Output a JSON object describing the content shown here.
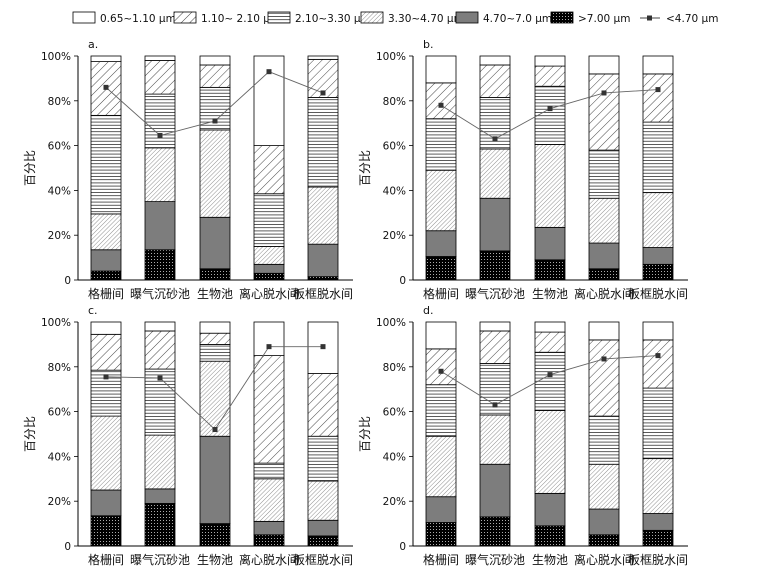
{
  "legend": [
    {
      "key": "s1",
      "label": "0.65~1.10 μm",
      "pattern": "white"
    },
    {
      "key": "s2",
      "label": "1.10~ 2.10 μm",
      "pattern": "diag-wide"
    },
    {
      "key": "s3",
      "label": "2.10~3.30 μm",
      "pattern": "horizontal"
    },
    {
      "key": "s4",
      "label": "3.30~4.70 μm",
      "pattern": "diag-dense"
    },
    {
      "key": "s5",
      "label": "4.70~7.0 μm",
      "pattern": "gray"
    },
    {
      "key": "s6",
      "label": ">7.00 μm",
      "pattern": "black-dots"
    },
    {
      "key": "line",
      "label": "<4.70 μm",
      "pattern": "line-marker"
    }
  ],
  "chart_data": [
    {
      "type": "bar",
      "panel": "a.",
      "ylabel": "百分比",
      "ylim": [
        0,
        100
      ],
      "yticks": [
        "0",
        "20%",
        "40%",
        "60%",
        "80%",
        "100%"
      ],
      "categories": [
        "格栅间",
        "曝气沉砂池",
        "生物池",
        "离心脱水间",
        "板框脱水间"
      ],
      "series": [
        {
          "name": ">7.00 μm",
          "values": [
            4,
            13.5,
            5,
            3,
            1.5
          ]
        },
        {
          "name": "4.70~7.0 μm",
          "values": [
            9.5,
            21.5,
            23,
            4,
            14.5
          ]
        },
        {
          "name": "3.30~4.70 μm",
          "values": [
            16,
            24,
            39,
            8,
            25.5
          ]
        },
        {
          "name": "2.10~3.30 μm",
          "values": [
            44,
            24,
            19,
            23.5,
            40
          ]
        },
        {
          "name": "1.10~ 2.10 μm",
          "values": [
            24,
            15,
            10,
            21.5,
            17
          ]
        },
        {
          "name": "0.65~1.10 μm",
          "values": [
            2.5,
            2,
            4,
            40,
            1.5
          ]
        }
      ],
      "line": {
        "name": "<4.70 μm",
        "values": [
          86,
          64.5,
          71,
          93,
          83.5
        ]
      }
    },
    {
      "type": "bar",
      "panel": "b.",
      "ylabel": "百分比",
      "ylim": [
        0,
        100
      ],
      "yticks": [
        "0",
        "20%",
        "40%",
        "60%",
        "80%",
        "100%"
      ],
      "categories": [
        "格栅间",
        "曝气沉砂池",
        "生物池",
        "离心脱水间",
        "板框脱水间"
      ],
      "series": [
        {
          "name": ">7.00 μm",
          "values": [
            10.5,
            13,
            9,
            5,
            7
          ]
        },
        {
          "name": "4.70~7.0 μm",
          "values": [
            11.5,
            23.5,
            14.5,
            11.5,
            7.5
          ]
        },
        {
          "name": "3.30~4.70 μm",
          "values": [
            27,
            22,
            37,
            20,
            24.5
          ]
        },
        {
          "name": "2.10~3.30 μm",
          "values": [
            23,
            23,
            26,
            21.5,
            31.5
          ]
        },
        {
          "name": "1.10~ 2.10 μm",
          "values": [
            16,
            14.5,
            9,
            34,
            21.5
          ]
        },
        {
          "name": "0.65~1.10 μm",
          "values": [
            12,
            4,
            4.5,
            8,
            8
          ]
        }
      ],
      "line": {
        "name": "<4.70 μm",
        "values": [
          78,
          63,
          76.5,
          83.5,
          85
        ]
      }
    },
    {
      "type": "bar",
      "panel": "c.",
      "ylabel": "百分比",
      "ylim": [
        0,
        100
      ],
      "yticks": [
        "0",
        "20%",
        "40%",
        "60%",
        "80%",
        "100%"
      ],
      "categories": [
        "格栅间",
        "曝气沉砂池",
        "生物池",
        "离心脱水间",
        "板框脱水间"
      ],
      "series": [
        {
          "name": ">7.00 μm",
          "values": [
            13.5,
            19,
            10,
            5,
            4.5
          ]
        },
        {
          "name": "4.70~7.0 μm",
          "values": [
            11.5,
            6.5,
            39,
            6,
            7
          ]
        },
        {
          "name": "3.30~4.70 μm",
          "values": [
            33,
            24,
            33.5,
            19,
            17.5
          ]
        },
        {
          "name": "2.10~3.30 μm",
          "values": [
            20.5,
            29.5,
            7.5,
            7,
            20
          ]
        },
        {
          "name": "1.10~ 2.10 μm",
          "values": [
            16,
            17,
            5,
            48,
            28
          ]
        },
        {
          "name": "0.65~1.10 μm",
          "values": [
            5.5,
            4,
            5,
            15,
            23
          ]
        }
      ],
      "line": {
        "name": "<4.70 μm",
        "values": [
          75.5,
          75,
          52,
          89,
          89
        ]
      }
    },
    {
      "type": "bar",
      "panel": "d.",
      "ylabel": "百分比",
      "ylim": [
        0,
        100
      ],
      "yticks": [
        "0",
        "20%",
        "40%",
        "60%",
        "80%",
        "100%"
      ],
      "categories": [
        "格栅间",
        "曝气沉砂池",
        "生物池",
        "离心脱水间",
        "板框脱水间"
      ],
      "series": [
        {
          "name": ">7.00 μm",
          "values": [
            10.5,
            13,
            9,
            5,
            7
          ]
        },
        {
          "name": "4.70~7.0 μm",
          "values": [
            11.5,
            23.5,
            14.5,
            11.5,
            7.5
          ]
        },
        {
          "name": "3.30~4.70 μm",
          "values": [
            27,
            22,
            37,
            20,
            24.5
          ]
        },
        {
          "name": "2.10~3.30 μm",
          "values": [
            23,
            23,
            26,
            21.5,
            31.5
          ]
        },
        {
          "name": "1.10~ 2.10 μm",
          "values": [
            16,
            14.5,
            9,
            34,
            21.5
          ]
        },
        {
          "name": "0.65~1.10 μm",
          "values": [
            12,
            4,
            4.5,
            8,
            8
          ]
        }
      ],
      "line": {
        "name": "<4.70 μm",
        "values": [
          78,
          63,
          76.5,
          83.5,
          85
        ]
      }
    }
  ]
}
